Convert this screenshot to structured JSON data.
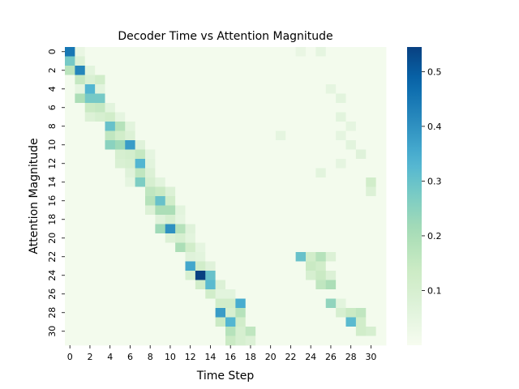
{
  "chart_data": {
    "type": "heatmap",
    "title": "Decoder Time vs Attention Magnitude",
    "xlabel": "Time Step",
    "ylabel": "Attention Magnitude",
    "x_ticks": [
      "0",
      "2",
      "4",
      "6",
      "8",
      "10",
      "12",
      "14",
      "16",
      "18",
      "20",
      "22",
      "24",
      "26",
      "28",
      "30"
    ],
    "y_ticks": [
      "0",
      "2",
      "4",
      "6",
      "8",
      "10",
      "12",
      "14",
      "16",
      "18",
      "20",
      "22",
      "24",
      "26",
      "28",
      "30"
    ],
    "n_cols": 32,
    "n_rows": 32,
    "value_range": [
      0.0,
      0.545
    ],
    "colormap": "GnBu",
    "colorbar_ticks": [
      "0.1",
      "0.2",
      "0.3",
      "0.4",
      "0.5"
    ],
    "colorbar_tick_values": [
      0.1,
      0.2,
      0.3,
      0.4,
      0.5
    ],
    "base_value": 0.01,
    "cells": [
      [
        0,
        0,
        0.45
      ],
      [
        0,
        1,
        0.04
      ],
      [
        1,
        0,
        0.28
      ],
      [
        1,
        1,
        0.08
      ],
      [
        2,
        0,
        0.17
      ],
      [
        2,
        1,
        0.42
      ],
      [
        2,
        2,
        0.06
      ],
      [
        3,
        1,
        0.15
      ],
      [
        3,
        2,
        0.09
      ],
      [
        3,
        3,
        0.12
      ],
      [
        4,
        2,
        0.33
      ],
      [
        4,
        1,
        0.05
      ],
      [
        4,
        3,
        0.06
      ],
      [
        5,
        1,
        0.2
      ],
      [
        5,
        2,
        0.28
      ],
      [
        5,
        3,
        0.28
      ],
      [
        6,
        2,
        0.14
      ],
      [
        6,
        3,
        0.15
      ],
      [
        6,
        4,
        0.06
      ],
      [
        7,
        2,
        0.08
      ],
      [
        7,
        3,
        0.1
      ],
      [
        7,
        4,
        0.12
      ],
      [
        7,
        5,
        0.05
      ],
      [
        8,
        4,
        0.3
      ],
      [
        8,
        5,
        0.18
      ],
      [
        8,
        6,
        0.06
      ],
      [
        9,
        4,
        0.16
      ],
      [
        9,
        5,
        0.12
      ],
      [
        9,
        6,
        0.08
      ],
      [
        10,
        4,
        0.25
      ],
      [
        10,
        5,
        0.22
      ],
      [
        10,
        6,
        0.38
      ],
      [
        10,
        7,
        0.07
      ],
      [
        11,
        5,
        0.1
      ],
      [
        11,
        6,
        0.11
      ],
      [
        11,
        7,
        0.15
      ],
      [
        11,
        8,
        0.05
      ],
      [
        12,
        5,
        0.09
      ],
      [
        12,
        6,
        0.1
      ],
      [
        12,
        7,
        0.33
      ],
      [
        12,
        8,
        0.06
      ],
      [
        13,
        6,
        0.07
      ],
      [
        13,
        7,
        0.16
      ],
      [
        13,
        8,
        0.08
      ],
      [
        14,
        6,
        0.05
      ],
      [
        14,
        7,
        0.27
      ],
      [
        14,
        8,
        0.1
      ],
      [
        14,
        9,
        0.06
      ],
      [
        15,
        8,
        0.16
      ],
      [
        15,
        9,
        0.14
      ],
      [
        15,
        10,
        0.08
      ],
      [
        16,
        8,
        0.18
      ],
      [
        16,
        9,
        0.3
      ],
      [
        16,
        10,
        0.12
      ],
      [
        17,
        8,
        0.08
      ],
      [
        17,
        9,
        0.2
      ],
      [
        17,
        10,
        0.2
      ],
      [
        17,
        11,
        0.06
      ],
      [
        18,
        9,
        0.07
      ],
      [
        18,
        10,
        0.1
      ],
      [
        18,
        11,
        0.05
      ],
      [
        19,
        9,
        0.22
      ],
      [
        19,
        10,
        0.4
      ],
      [
        19,
        11,
        0.18
      ],
      [
        19,
        12,
        0.07
      ],
      [
        20,
        10,
        0.08
      ],
      [
        20,
        11,
        0.1
      ],
      [
        20,
        12,
        0.06
      ],
      [
        21,
        11,
        0.2
      ],
      [
        21,
        12,
        0.12
      ],
      [
        21,
        13,
        0.05
      ],
      [
        22,
        12,
        0.07
      ],
      [
        22,
        13,
        0.06
      ],
      [
        23,
        12,
        0.36
      ],
      [
        23,
        13,
        0.12
      ],
      [
        23,
        14,
        0.07
      ],
      [
        24,
        12,
        0.1
      ],
      [
        24,
        13,
        0.545
      ],
      [
        24,
        14,
        0.3
      ],
      [
        25,
        13,
        0.12
      ],
      [
        25,
        14,
        0.32
      ],
      [
        25,
        15,
        0.08
      ],
      [
        26,
        14,
        0.12
      ],
      [
        26,
        15,
        0.06
      ],
      [
        26,
        16,
        0.06
      ],
      [
        27,
        15,
        0.12
      ],
      [
        27,
        16,
        0.12
      ],
      [
        27,
        17,
        0.35
      ],
      [
        28,
        15,
        0.38
      ],
      [
        28,
        16,
        0.1
      ],
      [
        28,
        17,
        0.18
      ],
      [
        29,
        15,
        0.14
      ],
      [
        29,
        16,
        0.33
      ],
      [
        29,
        17,
        0.12
      ],
      [
        30,
        16,
        0.18
      ],
      [
        30,
        17,
        0.1
      ],
      [
        30,
        18,
        0.16
      ],
      [
        31,
        16,
        0.14
      ],
      [
        31,
        17,
        0.1
      ],
      [
        31,
        18,
        0.08
      ],
      [
        22,
        23,
        0.3
      ],
      [
        22,
        24,
        0.12
      ],
      [
        22,
        25,
        0.18
      ],
      [
        22,
        26,
        0.08
      ],
      [
        23,
        24,
        0.14
      ],
      [
        23,
        25,
        0.12
      ],
      [
        24,
        24,
        0.1
      ],
      [
        24,
        25,
        0.14
      ],
      [
        24,
        26,
        0.08
      ],
      [
        25,
        25,
        0.16
      ],
      [
        25,
        26,
        0.2
      ],
      [
        27,
        26,
        0.24
      ],
      [
        27,
        27,
        0.06
      ],
      [
        28,
        27,
        0.1
      ],
      [
        28,
        28,
        0.14
      ],
      [
        28,
        29,
        0.16
      ],
      [
        29,
        28,
        0.32
      ],
      [
        29,
        29,
        0.12
      ],
      [
        30,
        29,
        0.12
      ],
      [
        30,
        30,
        0.1
      ],
      [
        0,
        25,
        0.05
      ],
      [
        0,
        23,
        0.04
      ],
      [
        9,
        21,
        0.05
      ],
      [
        8,
        28,
        0.05
      ],
      [
        7,
        27,
        0.06
      ],
      [
        15,
        30,
        0.08
      ],
      [
        14,
        30,
        0.12
      ],
      [
        13,
        25,
        0.06
      ],
      [
        12,
        27,
        0.05
      ],
      [
        11,
        29,
        0.07
      ],
      [
        10,
        28,
        0.06
      ],
      [
        9,
        27,
        0.05
      ],
      [
        5,
        27,
        0.06
      ],
      [
        4,
        26,
        0.05
      ]
    ]
  }
}
